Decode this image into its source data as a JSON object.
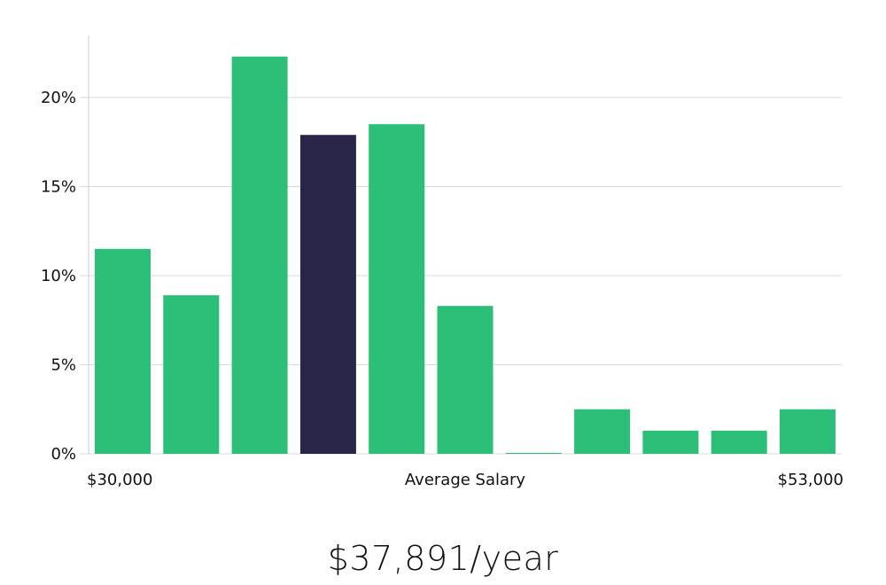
{
  "chart_data": {
    "type": "bar",
    "title": "",
    "xlabel": "Average Salary",
    "ylabel": "",
    "ylim": [
      0,
      23.5
    ],
    "yticks": [
      0,
      5,
      10,
      15,
      20
    ],
    "ytick_labels": [
      "0%",
      "5%",
      "10%",
      "15%",
      "20%"
    ],
    "x_range_labels": {
      "min": "$30,000",
      "max": "$53,000"
    },
    "values": [
      11.5,
      8.9,
      22.3,
      17.9,
      18.5,
      8.3,
      0.05,
      2.5,
      1.3,
      1.3,
      2.5
    ],
    "highlight_index": 3,
    "colors": {
      "bar": "#2bbf77",
      "highlight": "#282546",
      "grid": "#d9d9d9",
      "axis": "#cccccc"
    }
  },
  "summary": {
    "value": "$37,891/year"
  }
}
